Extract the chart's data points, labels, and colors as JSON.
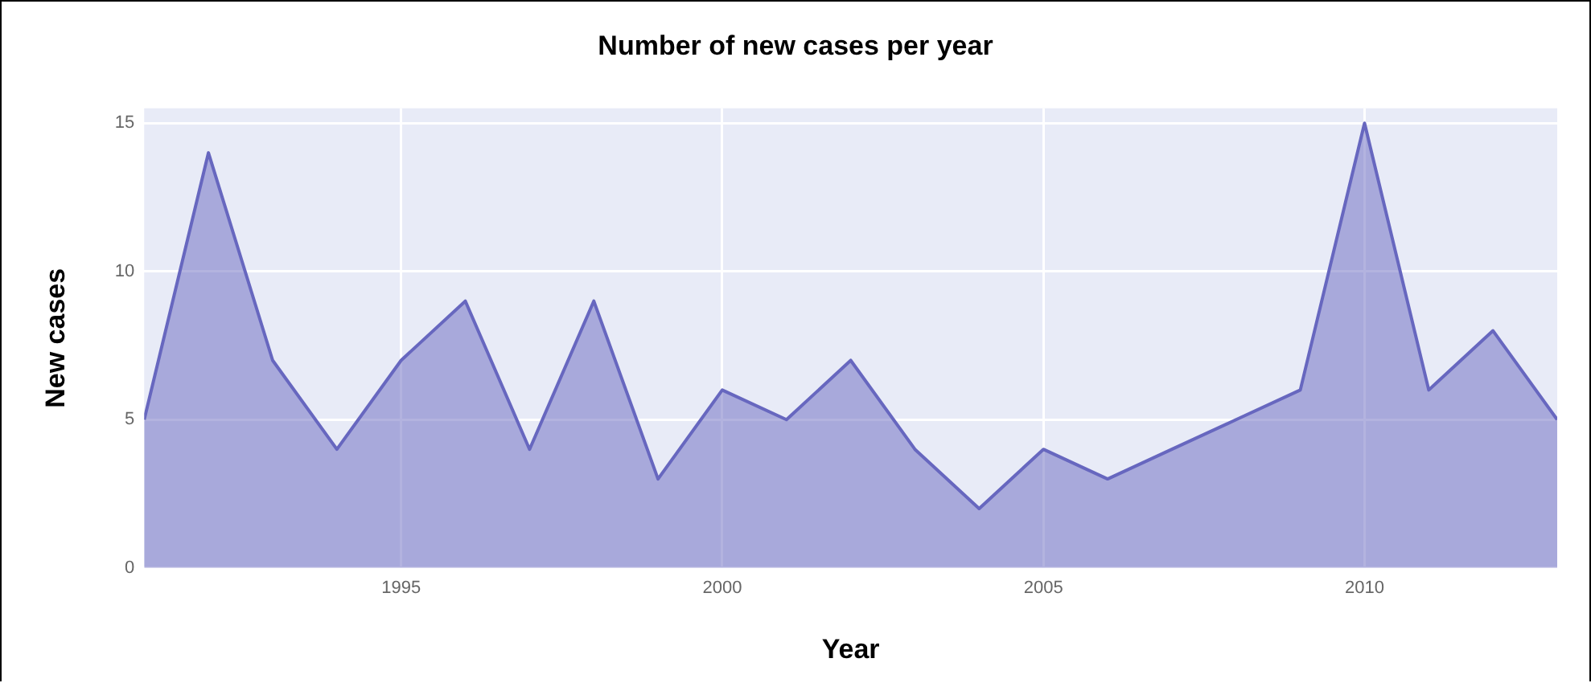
{
  "chart_data": {
    "type": "area",
    "title": "Number of new cases per year",
    "xlabel": "Year",
    "ylabel": "New cases",
    "x": [
      1991,
      1992,
      1993,
      1994,
      1995,
      1996,
      1997,
      1998,
      1999,
      2000,
      2001,
      2002,
      2003,
      2004,
      2005,
      2006,
      2007,
      2008,
      2009,
      2010,
      2011,
      2012,
      2013
    ],
    "series": [
      {
        "color": "#6767bf",
        "values": [
          5,
          14,
          7,
          4,
          7,
          9,
          4,
          9,
          3,
          6,
          5,
          7,
          4,
          2,
          4,
          3,
          4,
          5,
          6,
          15,
          6,
          8,
          5
        ]
      }
    ],
    "xlim": [
      1991,
      2013
    ],
    "xticks": [
      1995,
      2000,
      2005,
      2010
    ],
    "ylim": [
      0,
      15.5
    ],
    "yticks": [
      0,
      5,
      10,
      15
    ],
    "grid": true,
    "legend": false
  }
}
